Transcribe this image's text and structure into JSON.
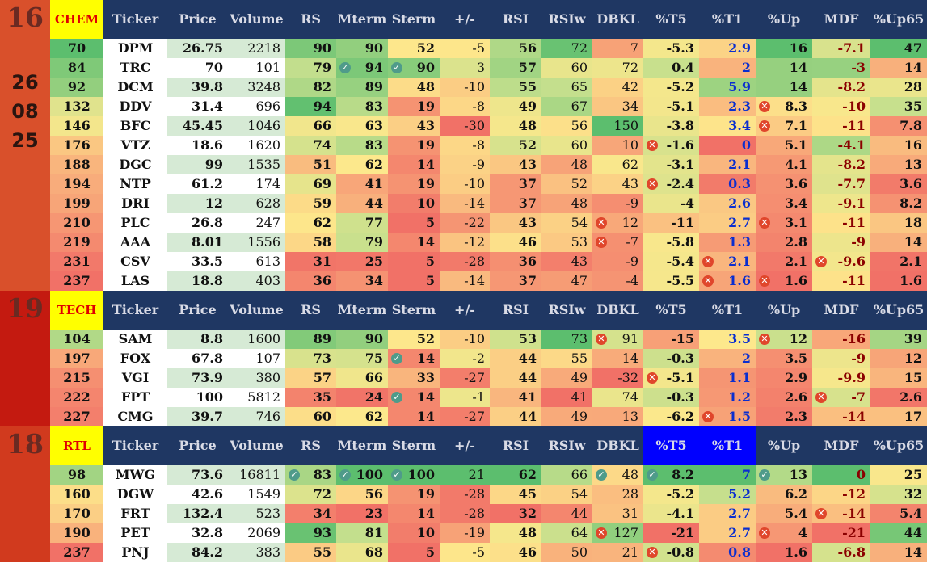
{
  "columns": [
    "Ticker",
    "Price",
    "Volume",
    "RS",
    "Mterm",
    "Sterm",
    "+/-",
    "RSI",
    "RSIw",
    "DBKL",
    "%T5",
    "%T1",
    "%Up",
    "MDF",
    "%Up65"
  ],
  "date": [
    "26",
    "08",
    "25"
  ],
  "groups": [
    {
      "count": "16",
      "sector": "CHEM",
      "rows": [
        [
          "70",
          "DPM",
          "26.75",
          "2218",
          "90",
          "90",
          "52",
          "-5",
          "56",
          "72",
          "7",
          "-5.3",
          "2.9",
          "16",
          "-7.1",
          "47"
        ],
        [
          "84",
          "TRC",
          "70",
          "101",
          "79",
          "94",
          "90",
          "3",
          "57",
          "60",
          "72",
          "0.4",
          "2",
          "14",
          "-3",
          "14"
        ],
        [
          "92",
          "DCM",
          "39.8",
          "3248",
          "82",
          "89",
          "48",
          "-10",
          "55",
          "65",
          "42",
          "-5.2",
          "5.9",
          "14",
          "-8.2",
          "28"
        ],
        [
          "132",
          "DDV",
          "31.4",
          "696",
          "94",
          "83",
          "19",
          "-8",
          "49",
          "67",
          "34",
          "-5.1",
          "2.3",
          "8.3",
          "-10",
          "35"
        ],
        [
          "146",
          "BFC",
          "45.45",
          "1046",
          "66",
          "63",
          "43",
          "-30",
          "48",
          "56",
          "150",
          "-3.8",
          "3.4",
          "7.1",
          "-11",
          "7.8"
        ],
        [
          "176",
          "VTZ",
          "18.6",
          "1620",
          "74",
          "83",
          "19",
          "-8",
          "52",
          "60",
          "10",
          "-1.6",
          "0",
          "5.1",
          "-4.1",
          "16"
        ],
        [
          "188",
          "DGC",
          "99",
          "1535",
          "51",
          "62",
          "14",
          "-9",
          "43",
          "48",
          "62",
          "-3.1",
          "2.1",
          "4.1",
          "-8.2",
          "13"
        ],
        [
          "194",
          "NTP",
          "61.2",
          "174",
          "69",
          "41",
          "19",
          "-10",
          "37",
          "52",
          "43",
          "-2.4",
          "0.3",
          "3.6",
          "-7.7",
          "3.6"
        ],
        [
          "199",
          "DRI",
          "12",
          "628",
          "59",
          "44",
          "10",
          "-14",
          "37",
          "48",
          "-9",
          "-4",
          "2.6",
          "3.4",
          "-9.1",
          "8.2"
        ],
        [
          "210",
          "PLC",
          "26.8",
          "247",
          "62",
          "77",
          "5",
          "-22",
          "43",
          "54",
          "12",
          "-11",
          "2.7",
          "3.1",
          "-11",
          "18"
        ],
        [
          "219",
          "AAA",
          "8.01",
          "1556",
          "58",
          "79",
          "14",
          "-12",
          "46",
          "53",
          "-7",
          "-5.8",
          "1.3",
          "2.8",
          "-9",
          "14"
        ],
        [
          "231",
          "CSV",
          "33.5",
          "613",
          "31",
          "25",
          "5",
          "-28",
          "36",
          "43",
          "-9",
          "-5.4",
          "2.1",
          "2.1",
          "-9.6",
          "2.1"
        ],
        [
          "237",
          "LAS",
          "18.8",
          "403",
          "36",
          "34",
          "5",
          "-14",
          "37",
          "47",
          "-4",
          "-5.5",
          "1.6",
          "1.6",
          "-11",
          "1.6"
        ]
      ]
    },
    {
      "count": "19",
      "sector": "TECH",
      "rows": [
        [
          "104",
          "SAM",
          "8.8",
          "1600",
          "89",
          "90",
          "52",
          "-10",
          "53",
          "73",
          "91",
          "-15",
          "3.5",
          "12",
          "-16",
          "39"
        ],
        [
          "197",
          "FOX",
          "67.8",
          "107",
          "73",
          "75",
          "14",
          "-2",
          "44",
          "55",
          "14",
          "-0.3",
          "2",
          "3.5",
          "-9",
          "12"
        ],
        [
          "215",
          "VGI",
          "73.9",
          "380",
          "57",
          "66",
          "33",
          "-27",
          "44",
          "49",
          "-32",
          "-5.1",
          "1.1",
          "2.9",
          "-9.9",
          "15"
        ],
        [
          "222",
          "FPT",
          "100",
          "5812",
          "35",
          "24",
          "14",
          "-1",
          "41",
          "41",
          "74",
          "-0.3",
          "1.2",
          "2.6",
          "-7",
          "2.6"
        ],
        [
          "227",
          "CMG",
          "39.7",
          "746",
          "60",
          "62",
          "14",
          "-27",
          "44",
          "49",
          "13",
          "-6.2",
          "1.5",
          "2.3",
          "-14",
          "17"
        ]
      ]
    },
    {
      "count": "18",
      "sector": "RTL",
      "rows": [
        [
          "98",
          "MWG",
          "73.6",
          "16811",
          "83",
          "100",
          "100",
          "21",
          "62",
          "66",
          "48",
          "8.2",
          "7",
          "13",
          "0",
          "25"
        ],
        [
          "160",
          "DGW",
          "42.6",
          "1549",
          "72",
          "56",
          "19",
          "-28",
          "45",
          "54",
          "28",
          "-5.2",
          "5.2",
          "6.2",
          "-12",
          "32"
        ],
        [
          "170",
          "FRT",
          "132.4",
          "523",
          "34",
          "23",
          "14",
          "-28",
          "32",
          "44",
          "31",
          "-4.1",
          "2.7",
          "5.4",
          "-14",
          "5.4"
        ],
        [
          "190",
          "PET",
          "32.8",
          "2069",
          "93",
          "81",
          "10",
          "-19",
          "48",
          "64",
          "127",
          "-21",
          "2.7",
          "4",
          "-21",
          "44"
        ],
        [
          "237",
          "PNJ",
          "84.2",
          "383",
          "55",
          "68",
          "5",
          "-5",
          "46",
          "50",
          "21",
          "-0.8",
          "0.8",
          "1.6",
          "-6.8",
          "14"
        ]
      ]
    }
  ],
  "icons": [
    {
      "g": 0,
      "r": 1,
      "c": 5,
      "t": "check"
    },
    {
      "g": 0,
      "r": 1,
      "c": 6,
      "t": "check"
    },
    {
      "g": 0,
      "r": 3,
      "c": 13,
      "t": "cross"
    },
    {
      "g": 0,
      "r": 4,
      "c": 13,
      "t": "cross"
    },
    {
      "g": 0,
      "r": 5,
      "c": 11,
      "t": "cross"
    },
    {
      "g": 0,
      "r": 7,
      "c": 11,
      "t": "cross"
    },
    {
      "g": 0,
      "r": 9,
      "c": 10,
      "t": "cross"
    },
    {
      "g": 0,
      "r": 9,
      "c": 13,
      "t": "cross"
    },
    {
      "g": 0,
      "r": 10,
      "c": 10,
      "t": "cross"
    },
    {
      "g": 0,
      "r": 11,
      "c": 12,
      "t": "cross"
    },
    {
      "g": 0,
      "r": 11,
      "c": 14,
      "t": "cross"
    },
    {
      "g": 0,
      "r": 12,
      "c": 12,
      "t": "cross"
    },
    {
      "g": 0,
      "r": 12,
      "c": 13,
      "t": "cross"
    },
    {
      "g": 1,
      "r": 0,
      "c": 10,
      "t": "cross"
    },
    {
      "g": 1,
      "r": 0,
      "c": 13,
      "t": "cross"
    },
    {
      "g": 1,
      "r": 1,
      "c": 6,
      "t": "check"
    },
    {
      "g": 1,
      "r": 2,
      "c": 11,
      "t": "cross"
    },
    {
      "g": 1,
      "r": 3,
      "c": 6,
      "t": "check"
    },
    {
      "g": 1,
      "r": 3,
      "c": 14,
      "t": "cross"
    },
    {
      "g": 1,
      "r": 4,
      "c": 12,
      "t": "cross"
    },
    {
      "g": 2,
      "r": 0,
      "c": 4,
      "t": "check"
    },
    {
      "g": 2,
      "r": 0,
      "c": 5,
      "t": "check"
    },
    {
      "g": 2,
      "r": 0,
      "c": 6,
      "t": "check"
    },
    {
      "g": 2,
      "r": 0,
      "c": 10,
      "t": "check"
    },
    {
      "g": 2,
      "r": 0,
      "c": 11,
      "t": "check"
    },
    {
      "g": 2,
      "r": 0,
      "c": 13,
      "t": "check"
    },
    {
      "g": 2,
      "r": 2,
      "c": 14,
      "t": "cross"
    },
    {
      "g": 2,
      "r": 3,
      "c": 10,
      "t": "cross"
    },
    {
      "g": 2,
      "r": 3,
      "c": 13,
      "t": "cross"
    },
    {
      "g": 2,
      "r": 4,
      "c": 11,
      "t": "cross"
    }
  ],
  "colors": {
    "header_bg": "#1f3763",
    "header_text": "#d9dbe6",
    "sector_bg": "#ffff00",
    "sector_text": "#e00000",
    "blue_highlight": "#0000ff",
    "side_chem": "#d9502b",
    "side_tech": "#c41a10",
    "side_rtl": "#d13a1e",
    "t1_text": "#0a2ecf",
    "mdf_text": "#8b0000",
    "white_cell": "#ffffff"
  },
  "scales": {
    "rs": {
      "min": 30,
      "max": 95
    },
    "mterm": {
      "min": 23,
      "max": 100
    },
    "sterm": {
      "min": 5,
      "max": 100
    },
    "pm": {
      "min": -30,
      "max": 21
    },
    "rsi": {
      "min": 32,
      "max": 62
    },
    "rsiw": {
      "min": 41,
      "max": 73
    },
    "dbkl": {
      "min": -32,
      "max": 150
    },
    "t5": {
      "min": -21,
      "max": 8.2
    },
    "t1": {
      "min": 0,
      "max": 7
    },
    "up": {
      "min": 1.6,
      "max": 16
    },
    "mdf": {
      "min": -21,
      "max": 0
    },
    "up65": {
      "min": 1.6,
      "max": 47
    },
    "rank": {
      "min": 70,
      "max": 237
    }
  }
}
